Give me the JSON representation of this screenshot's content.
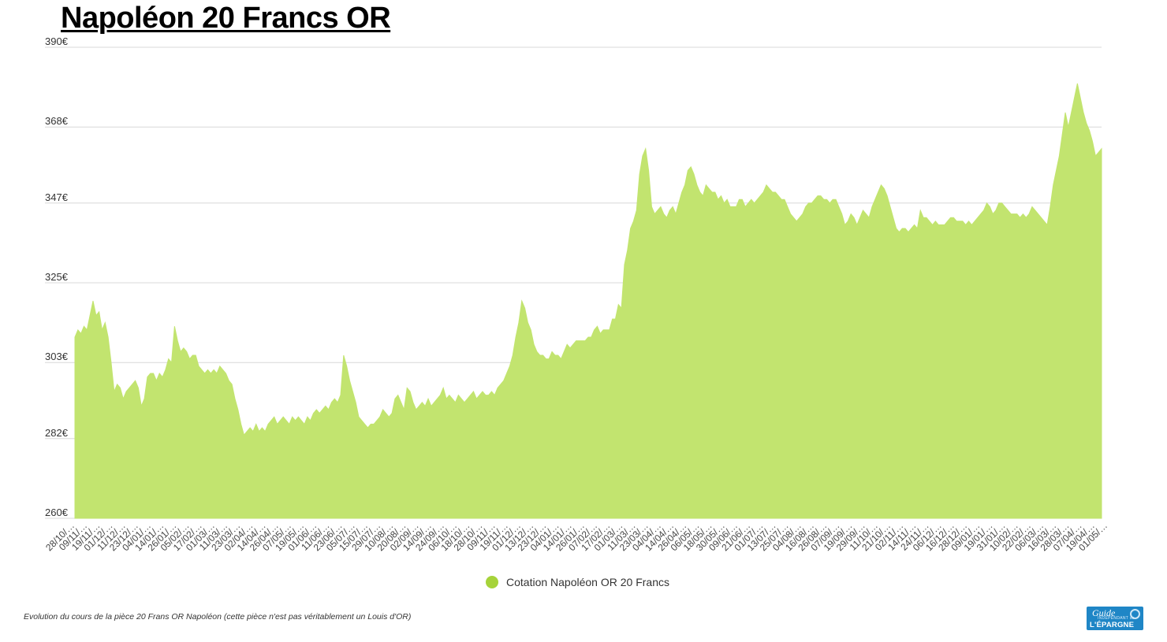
{
  "title": "Napoléon 20 Francs OR",
  "note": "Evolution du cours de la pièce 20 Frans OR Napoléon (cette pièce n'est pas véritablement un Louis d'OR)",
  "logo": {
    "line1": "Guide",
    "line2": "INDÉPENDANT de",
    "line3": "L'ÉPARGNE"
  },
  "colors": {
    "series": "#c2e46f",
    "legend_dot": "#a6d33a",
    "grid": "#d8d8d8",
    "logo_bg": "#1f86c6"
  },
  "chart_data": {
    "type": "area",
    "title": "Napoléon 20 Francs OR",
    "xlabel": "",
    "ylabel": "",
    "ylim": [
      258,
      390
    ],
    "yticks": [
      260,
      282,
      303,
      325,
      347,
      368,
      390
    ],
    "ytick_labels": [
      "260€",
      "282€",
      "303€",
      "325€",
      "347€",
      "368€",
      "390€"
    ],
    "grid": true,
    "legend": "bottom-center",
    "x_tick_labels": [
      "28/10/…",
      "09/11/…",
      "19/11/…",
      "01/12/…",
      "11/12/…",
      "23/12/…",
      "04/01/…",
      "14/01/…",
      "26/01/…",
      "05/02/…",
      "17/02/…",
      "01/03/…",
      "11/03/…",
      "23/03/…",
      "02/04/…",
      "14/04/…",
      "26/04/…",
      "07/05/…",
      "19/05/…",
      "01/06/…",
      "11/06/…",
      "23/06/…",
      "05/07/…",
      "15/07/…",
      "29/07/…",
      "10/08/…",
      "20/08/…",
      "02/09/…",
      "14/09/…",
      "24/09/…",
      "06/10/…",
      "18/10/…",
      "28/10/…",
      "09/11/…",
      "19/11/…",
      "01/12/…",
      "13/12/…",
      "23/12/…",
      "04/01/…",
      "14/01/…",
      "26/01/…",
      "07/02/…",
      "17/02/…",
      "01/03/…",
      "11/03/…",
      "23/03/…",
      "04/04/…",
      "14/04/…",
      "26/04/…",
      "06/05/…",
      "18/05/…",
      "30/05/…",
      "09/06/…",
      "21/06/…",
      "01/07/…",
      "13/07/…",
      "25/07/…",
      "04/08/…",
      "16/08/…",
      "26/08/…",
      "07/09/…",
      "19/09/…",
      "29/09/…",
      "11/10/…",
      "21/10/…",
      "02/11/…",
      "14/11/…",
      "24/11/…",
      "06/12/…",
      "16/12/…",
      "28/12/…",
      "09/01/…",
      "19/01/…",
      "31/01/…",
      "10/02/…",
      "22/02/…",
      "06/03/…",
      "16/03/…",
      "28/03/…",
      "07/04/…",
      "19/04/…",
      "01/05/…"
    ],
    "series": [
      {
        "name": "Cotation Napoléon OR 20 Francs",
        "values": [
          310,
          312,
          311,
          313,
          312,
          316,
          320,
          316,
          317,
          312,
          314,
          310,
          303,
          295,
          297,
          296,
          293,
          295,
          296,
          297,
          298,
          296,
          291,
          293,
          299,
          300,
          300,
          298,
          300,
          299,
          301,
          304,
          303,
          313,
          309,
          306,
          307,
          306,
          304,
          305,
          305,
          302,
          301,
          300,
          301,
          300,
          301,
          300,
          302,
          301,
          300,
          298,
          297,
          293,
          290,
          286,
          283,
          284,
          285,
          284,
          286,
          284,
          285,
          284,
          286,
          287,
          288,
          286,
          287,
          288,
          287,
          286,
          288,
          287,
          288,
          287,
          286,
          288,
          287,
          289,
          290,
          289,
          290,
          291,
          290,
          292,
          293,
          292,
          294,
          305,
          302,
          298,
          295,
          292,
          288,
          287,
          286,
          285,
          286,
          286,
          287,
          288,
          290,
          289,
          288,
          289,
          293,
          294,
          292,
          290,
          296,
          295,
          292,
          290,
          291,
          292,
          291,
          293,
          291,
          292,
          293,
          294,
          296,
          293,
          294,
          293,
          292,
          294,
          293,
          292,
          293,
          294,
          295,
          293,
          294,
          295,
          294,
          294,
          295,
          294,
          296,
          297,
          298,
          300,
          302,
          305,
          310,
          314,
          320,
          318,
          314,
          312,
          308,
          306,
          305,
          305,
          304,
          304,
          306,
          305,
          305,
          304,
          306,
          308,
          307,
          308,
          309,
          309,
          309,
          309,
          310,
          310,
          312,
          313,
          311,
          312,
          312,
          312,
          315,
          315,
          319,
          318,
          330,
          334,
          340,
          342,
          345,
          355,
          360,
          362,
          356,
          346,
          344,
          345,
          346,
          344,
          343,
          345,
          346,
          344,
          347,
          350,
          352,
          356,
          357,
          355,
          352,
          350,
          349,
          352,
          351,
          350,
          350,
          348,
          349,
          347,
          348,
          346,
          346,
          346,
          348,
          348,
          346,
          347,
          348,
          347,
          348,
          349,
          350,
          352,
          351,
          350,
          350,
          349,
          348,
          348,
          346,
          344,
          343,
          342,
          343,
          344,
          346,
          347,
          347,
          348,
          349,
          349,
          348,
          348,
          347,
          348,
          348,
          346,
          344,
          341,
          342,
          344,
          343,
          341,
          343,
          345,
          344,
          343,
          346,
          348,
          350,
          352,
          351,
          349,
          346,
          343,
          340,
          339,
          340,
          340,
          339,
          340,
          341,
          340,
          345,
          343,
          343,
          342,
          341,
          342,
          341,
          341,
          341,
          342,
          343,
          343,
          342,
          342,
          342,
          341,
          342,
          341,
          342,
          343,
          344,
          345,
          347,
          346,
          344,
          345,
          347,
          347,
          346,
          345,
          344,
          344,
          344,
          343,
          344,
          343,
          344,
          346,
          345,
          344,
          343,
          342,
          341,
          346,
          352,
          356,
          360,
          366,
          372,
          368,
          372,
          376,
          380,
          376,
          372,
          369,
          367,
          364,
          360,
          361,
          362
        ]
      }
    ]
  }
}
